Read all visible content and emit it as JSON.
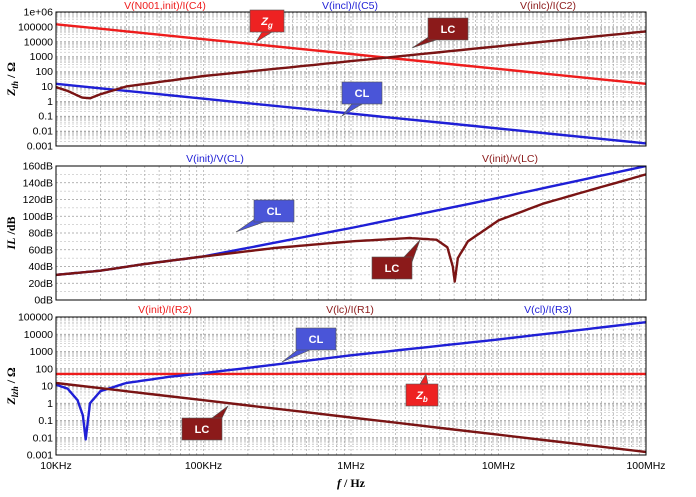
{
  "chart_data": [
    {
      "type": "line",
      "panel": "top",
      "y_scale": "log",
      "ylim": [
        0.001,
        1000000
      ],
      "y_ticks": [
        "1e+06",
        "100000",
        "10000",
        "1000",
        "100",
        "10",
        "1",
        "0.1",
        "0.01",
        "0.001"
      ],
      "ylabel": {
        "main": "Z",
        "sub": "th",
        "unit": " / Ω"
      },
      "x_ticks": [],
      "trace_titles": [
        {
          "text": "V(N001,init)/I(C4)",
          "color": "#ee1c1c"
        },
        {
          "text": "V(incl)/I(C5)",
          "color": "#1f1fd6"
        },
        {
          "text": "V(inlc)/I(C2)",
          "color": "#8b1a1a"
        }
      ],
      "series": [
        {
          "color": "#ee1c1c",
          "x": [
            10000,
            100000000
          ],
          "y": [
            150000,
            15
          ]
        },
        {
          "color": "#1f1fd6",
          "x": [
            10000,
            100000000
          ],
          "y": [
            15,
            0.0015
          ]
        },
        {
          "color": "#7a1414",
          "x": [
            10000,
            12000,
            15000,
            17000,
            20000,
            30000,
            100000,
            1000000,
            10000000,
            100000000
          ],
          "y": [
            9,
            5,
            1.8,
            1.6,
            3,
            10,
            50,
            500,
            5000,
            50000
          ]
        }
      ],
      "callouts": [
        {
          "text": "Z",
          "sub": "g",
          "color": "#ee2222"
        },
        {
          "text": "LC",
          "color": "#8b1a1a"
        },
        {
          "text": "CL",
          "color": "#4a55d8"
        }
      ]
    },
    {
      "type": "line",
      "panel": "middle",
      "y_scale": "linear",
      "ylim": [
        0,
        160
      ],
      "y_ticks": [
        "160dB",
        "140dB",
        "120dB",
        "100dB",
        "80dB",
        "60dB",
        "40dB",
        "20dB",
        "0dB"
      ],
      "ylabel": {
        "main": "IL",
        "sub": "",
        "unit": " /dB"
      },
      "x_ticks": [],
      "trace_titles": [
        {
          "text": "V(init)/V(CL)",
          "color": "#1f1fd6"
        },
        {
          "text": "V(init)/v(LC)",
          "color": "#8b1a1a"
        }
      ],
      "series": [
        {
          "color": "#1f1fd6",
          "x": [
            10000,
            20000,
            40000,
            100000,
            1000000,
            10000000,
            100000000
          ],
          "y": [
            30,
            35,
            43,
            52,
            86,
            122,
            160
          ]
        },
        {
          "color": "#7a1414",
          "x": [
            10000,
            20000,
            40000,
            100000,
            300000,
            1000000,
            2500000,
            3800000,
            4500000,
            4900000,
            5050000,
            5300000,
            6200000,
            10000000,
            20000000,
            50000000,
            100000000
          ],
          "y": [
            30,
            35,
            43,
            52,
            62,
            70,
            74,
            72,
            63,
            40,
            22,
            50,
            70,
            95,
            115,
            135,
            150
          ]
        }
      ],
      "callouts": [
        {
          "text": "CL",
          "color": "#4a55d8"
        },
        {
          "text": "LC",
          "color": "#8b1a1a"
        }
      ]
    },
    {
      "type": "line",
      "panel": "bottom",
      "y_scale": "log",
      "ylim": [
        0.001,
        100000
      ],
      "y_ticks": [
        "100000",
        "10000",
        "1000",
        "100",
        "10",
        "1",
        "0.1",
        "0.01",
        "0.001"
      ],
      "ylabel": {
        "main": "Z",
        "sub": "lzh",
        "unit": " / Ω"
      },
      "xlabel": {
        "main": "f",
        "unit": " / Hz"
      },
      "x_scale": "log",
      "xlim": [
        10000,
        100000000
      ],
      "x_ticks": [
        "10KHz",
        "100KHz",
        "1MHz",
        "10MHz",
        "100MHz"
      ],
      "trace_titles": [
        {
          "text": "V(init)/I(R2)",
          "color": "#ee1c1c"
        },
        {
          "text": "V(lc)/I(R1)",
          "color": "#8b1a1a"
        },
        {
          "text": "V(cl)/I(R3)",
          "color": "#1f1fd6"
        }
      ],
      "series": [
        {
          "color": "#ee1c1c",
          "x": [
            10000,
            100000000
          ],
          "y": [
            50,
            50
          ]
        },
        {
          "color": "#1f1fd6",
          "x": [
            10000,
            12000,
            14000,
            15200,
            15900,
            17000,
            20000,
            30000,
            60000,
            100000,
            1000000,
            10000000,
            100000000
          ],
          "y": [
            12,
            7,
            1.5,
            0.2,
            0.008,
            1,
            5,
            15,
            35,
            55,
            600,
            5000,
            50000
          ]
        },
        {
          "color": "#7a1414",
          "x": [
            10000,
            100000000
          ],
          "y": [
            15,
            0.0015
          ]
        }
      ],
      "callouts": [
        {
          "text": "CL",
          "color": "#4a55d8"
        },
        {
          "text": "Z",
          "sub": "b",
          "color": "#ee2222"
        },
        {
          "text": "LC",
          "color": "#8b1a1a"
        }
      ]
    }
  ]
}
